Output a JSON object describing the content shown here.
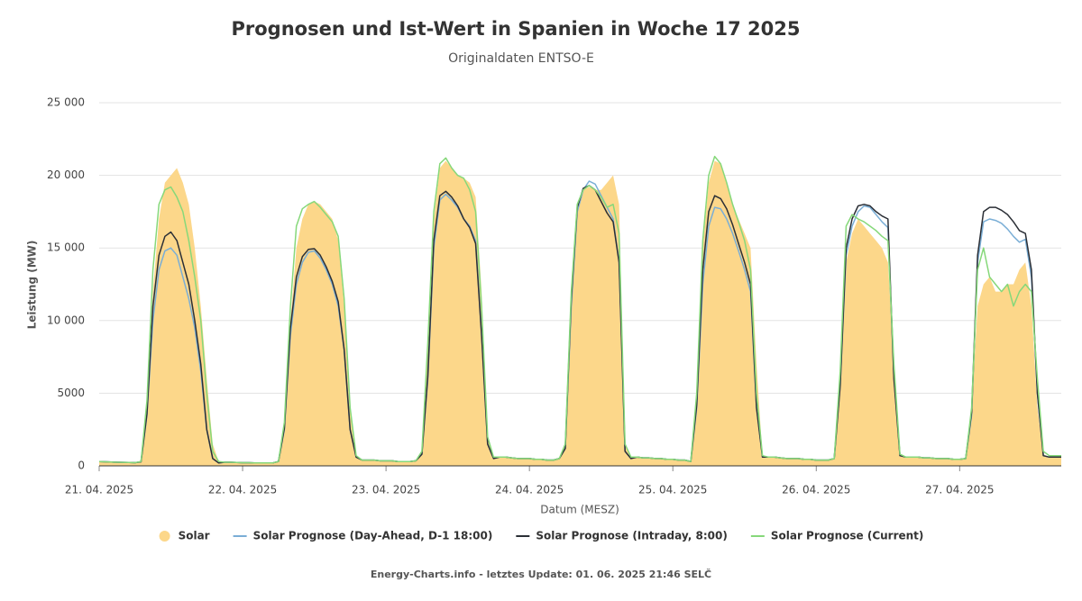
{
  "chart_data": {
    "type": "line",
    "title": "Prognosen und Ist-Wert in Spanien in Woche 17 2025",
    "subtitle": "Originaldaten ENTSO-E",
    "y_label": "Leistung (MW)",
    "x_label": "Datum (MESZ)",
    "footer": "Energy-Charts.info - letztes Update: 01. 06. 2025 21:46 SELČ",
    "legend": "bottom",
    "grid": true,
    "xlim": [
      0,
      161
    ],
    "ylim": [
      0,
      25000
    ],
    "xticks": [
      {
        "value": 0,
        "label": "21. 04. 2025"
      },
      {
        "value": 24,
        "label": "22. 04. 2025"
      },
      {
        "value": 48,
        "label": "23. 04. 2025"
      },
      {
        "value": 72,
        "label": "24. 04. 2025"
      },
      {
        "value": 96,
        "label": "25. 04. 2025"
      },
      {
        "value": 120,
        "label": "26. 04. 2025"
      },
      {
        "value": 144,
        "label": "27. 04. 2025"
      }
    ],
    "yticks": [
      0,
      5000,
      {
        "value": 10000,
        "label": "10 000"
      },
      {
        "value": 15000,
        "label": "15 000"
      },
      {
        "value": 20000,
        "label": "20 000"
      },
      {
        "value": 25000,
        "label": "25 000"
      }
    ],
    "x": [
      0,
      1,
      2,
      3,
      4,
      5,
      6,
      7,
      8,
      9,
      10,
      11,
      12,
      13,
      14,
      15,
      16,
      17,
      18,
      19,
      20,
      21,
      22,
      23,
      24,
      25,
      26,
      27,
      28,
      29,
      30,
      31,
      32,
      33,
      34,
      35,
      36,
      37,
      38,
      39,
      40,
      41,
      42,
      43,
      44,
      45,
      46,
      47,
      48,
      49,
      50,
      51,
      52,
      53,
      54,
      55,
      56,
      57,
      58,
      59,
      60,
      61,
      62,
      63,
      64,
      65,
      66,
      67,
      68,
      69,
      70,
      71,
      72,
      73,
      74,
      75,
      76,
      77,
      78,
      79,
      80,
      81,
      82,
      83,
      84,
      85,
      86,
      87,
      88,
      89,
      90,
      91,
      92,
      93,
      94,
      95,
      96,
      97,
      98,
      99,
      100,
      101,
      102,
      103,
      104,
      105,
      106,
      107,
      108,
      109,
      110,
      111,
      112,
      113,
      114,
      115,
      116,
      117,
      118,
      119,
      120,
      121,
      122,
      123,
      124,
      125,
      126,
      127,
      128,
      129,
      130,
      131,
      132,
      133,
      134,
      135,
      136,
      137,
      138,
      139,
      140,
      141,
      142,
      143,
      144,
      145,
      146,
      147,
      148,
      149,
      150,
      151,
      152,
      153,
      154,
      155,
      156,
      157,
      158,
      159,
      160,
      161
    ],
    "series": [
      {
        "name": "Solar",
        "type": "area",
        "color": "#fcd78a",
        "values": [
          300,
          280,
          260,
          250,
          240,
          230,
          220,
          300,
          4000,
          12000,
          17000,
          19500,
          20000,
          20500,
          19500,
          18000,
          15000,
          11000,
          6000,
          1500,
          300,
          250,
          250,
          230,
          220,
          220,
          200,
          200,
          200,
          200,
          300,
          3000,
          10000,
          15000,
          17000,
          18000,
          18200,
          18000,
          17500,
          17000,
          15500,
          11000,
          4000,
          700,
          400,
          400,
          400,
          350,
          350,
          350,
          300,
          300,
          300,
          350,
          1000,
          8000,
          17000,
          20500,
          21000,
          20500,
          20000,
          19800,
          19500,
          18500,
          12000,
          2000,
          600,
          600,
          600,
          550,
          500,
          500,
          500,
          450,
          450,
          400,
          400,
          500,
          1500,
          12000,
          18000,
          19000,
          19200,
          19000,
          19000,
          19500,
          20000,
          18000,
          1500,
          600,
          600,
          550,
          550,
          500,
          500,
          450,
          450,
          400,
          400,
          300,
          5000,
          15000,
          19500,
          21000,
          20800,
          19500,
          18000,
          17000,
          16000,
          15000,
          7000,
          700,
          600,
          600,
          550,
          500,
          500,
          500,
          450,
          450,
          400,
          400,
          400,
          500,
          6000,
          14000,
          16000,
          17000,
          16500,
          16000,
          15500,
          15000,
          14000,
          7000,
          800,
          600,
          600,
          600,
          550,
          550,
          500,
          500,
          500,
          450,
          450,
          500,
          4000,
          11000,
          12500,
          13000,
          12000,
          12000,
          12500,
          12500,
          13500,
          14000,
          11000,
          4000,
          800,
          600,
          600,
          600
        ]
      },
      {
        "name": "Solar Prognose (Day-Ahead, D-1 18:00)",
        "type": "line",
        "color": "#7aaed6",
        "values": [
          300,
          280,
          260,
          250,
          240,
          230,
          220,
          280,
          3500,
          10000,
          13500,
          14800,
          15000,
          14500,
          13000,
          11500,
          9500,
          6500,
          2500,
          500,
          200,
          250,
          250,
          230,
          220,
          220,
          200,
          200,
          200,
          200,
          300,
          2500,
          9000,
          12500,
          14000,
          14700,
          14800,
          14300,
          13500,
          12500,
          11000,
          8000,
          2500,
          600,
          400,
          400,
          400,
          350,
          350,
          350,
          300,
          300,
          300,
          350,
          800,
          6000,
          15000,
          18300,
          18700,
          18300,
          17800,
          17000,
          16500,
          15500,
          9000,
          1500,
          500,
          600,
          600,
          550,
          500,
          500,
          500,
          450,
          450,
          400,
          400,
          500,
          1200,
          11000,
          17500,
          19000,
          19600,
          19400,
          18600,
          17800,
          17000,
          14000,
          1000,
          500,
          600,
          550,
          550,
          500,
          500,
          450,
          450,
          400,
          400,
          300,
          4000,
          12500,
          16500,
          17800,
          17700,
          17000,
          16000,
          14800,
          13500,
          12000,
          4000,
          600,
          600,
          600,
          550,
          500,
          500,
          500,
          450,
          450,
          400,
          400,
          400,
          500,
          5500,
          14500,
          16500,
          17500,
          17900,
          17800,
          17300,
          16800,
          16400,
          6000,
          700,
          600,
          600,
          600,
          550,
          550,
          500,
          500,
          500,
          450,
          450,
          500,
          3500,
          14000,
          16800,
          17000,
          16900,
          16700,
          16300,
          15800,
          15400,
          15600,
          13000,
          5000,
          700,
          600,
          600,
          600
        ]
      },
      {
        "name": "Solar Prognose (Intraday, 8:00)",
        "type": "line",
        "color": "#2b2f36",
        "values": [
          300,
          280,
          260,
          250,
          240,
          230,
          220,
          280,
          3600,
          11000,
          14500,
          15800,
          16100,
          15500,
          14000,
          12500,
          10000,
          7000,
          2500,
          500,
          200,
          250,
          250,
          230,
          220,
          220,
          200,
          200,
          200,
          200,
          300,
          2600,
          9500,
          13000,
          14400,
          14900,
          14950,
          14500,
          13700,
          12700,
          11300,
          8000,
          2500,
          600,
          400,
          400,
          400,
          350,
          350,
          350,
          300,
          300,
          300,
          350,
          800,
          6200,
          15500,
          18600,
          18900,
          18500,
          17900,
          17000,
          16400,
          15300,
          9000,
          1500,
          500,
          600,
          600,
          550,
          500,
          500,
          500,
          450,
          450,
          400,
          400,
          500,
          1200,
          11500,
          17800,
          19100,
          19300,
          19000,
          18200,
          17400,
          16800,
          14000,
          1000,
          500,
          600,
          550,
          550,
          500,
          500,
          450,
          450,
          400,
          400,
          300,
          4200,
          13500,
          17500,
          18600,
          18400,
          17700,
          16600,
          15300,
          14000,
          12500,
          4000,
          600,
          600,
          600,
          550,
          500,
          500,
          500,
          450,
          450,
          400,
          400,
          400,
          500,
          5500,
          15000,
          17000,
          17900,
          18000,
          17900,
          17500,
          17200,
          17000,
          6000,
          700,
          600,
          600,
          600,
          550,
          550,
          500,
          500,
          500,
          450,
          450,
          500,
          3700,
          14500,
          17500,
          17800,
          17800,
          17600,
          17300,
          16800,
          16200,
          16000,
          13500,
          5000,
          700,
          600,
          600,
          600
        ]
      },
      {
        "name": "Solar Prognose (Current)",
        "type": "line",
        "color": "#86d87a",
        "values": [
          300,
          280,
          260,
          250,
          240,
          230,
          220,
          300,
          4500,
          13500,
          18000,
          19000,
          19200,
          18500,
          17500,
          15500,
          13000,
          10000,
          5000,
          1000,
          300,
          250,
          250,
          230,
          220,
          220,
          200,
          200,
          200,
          200,
          300,
          3000,
          11000,
          16500,
          17700,
          18000,
          18200,
          17800,
          17300,
          16800,
          15800,
          11500,
          4000,
          700,
          400,
          400,
          400,
          350,
          350,
          350,
          300,
          300,
          300,
          350,
          1000,
          8500,
          17500,
          20800,
          21200,
          20500,
          20000,
          19800,
          19000,
          17500,
          11000,
          2000,
          600,
          600,
          600,
          550,
          500,
          500,
          500,
          450,
          450,
          400,
          400,
          500,
          1500,
          12000,
          18000,
          19000,
          19300,
          19000,
          18500,
          17800,
          18000,
          16000,
          1500,
          600,
          600,
          550,
          550,
          500,
          500,
          450,
          450,
          400,
          400,
          300,
          5000,
          15500,
          20000,
          21300,
          20800,
          19500,
          18000,
          16800,
          15500,
          13500,
          5000,
          700,
          600,
          600,
          550,
          500,
          500,
          500,
          450,
          450,
          400,
          400,
          400,
          500,
          6500,
          16500,
          17300,
          17000,
          16800,
          16500,
          16200,
          15800,
          15500,
          7000,
          800,
          600,
          600,
          600,
          550,
          550,
          500,
          500,
          500,
          450,
          450,
          500,
          4000,
          13500,
          15000,
          13000,
          12500,
          12000,
          12500,
          11000,
          12000,
          12500,
          12000,
          6000,
          1000,
          700,
          700,
          700
        ]
      }
    ]
  }
}
